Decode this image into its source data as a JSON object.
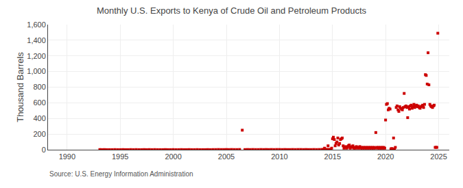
{
  "chart_data": {
    "type": "scatter",
    "title": "Monthly U.S. Exports to Kenya of Crude Oil and Petroleum Products",
    "y_label": "Thousand Barrels",
    "annotations": [
      "Source: U.S. Energy Information Administration"
    ],
    "color": "#cc0000",
    "marker": "square",
    "grid": true,
    "xlim": [
      1988.2,
      2026.0
    ],
    "xticks": [
      1990,
      1995,
      2000,
      2005,
      2010,
      2015,
      2020,
      2025
    ],
    "ylim": [
      0,
      1600
    ],
    "yticks": [
      0,
      200,
      400,
      600,
      800,
      {
        "value": 1000,
        "label": "1,000"
      },
      {
        "value": 1200,
        "label": "1,200"
      },
      {
        "value": 1400,
        "label": "1,400"
      },
      {
        "value": 1600,
        "label": "1,600"
      }
    ],
    "x": [
      1993.08,
      1993.25,
      1993.5,
      1993.75,
      1994.0,
      1994.25,
      1994.5,
      1994.75,
      1995.0,
      1995.25,
      1995.5,
      1995.75,
      1996.0,
      1996.25,
      1996.5,
      1996.75,
      1997.0,
      1997.25,
      1997.5,
      1997.75,
      1998.0,
      1998.25,
      1998.5,
      1998.75,
      1999.0,
      1999.25,
      1999.5,
      1999.75,
      2000.0,
      2000.25,
      2000.5,
      2000.75,
      2001.0,
      2001.25,
      2001.5,
      2001.75,
      2002.0,
      2002.25,
      2002.5,
      2002.75,
      2003.0,
      2003.25,
      2003.5,
      2003.75,
      2004.0,
      2004.25,
      2004.5,
      2004.75,
      2005.0,
      2005.25,
      2005.5,
      2005.75,
      2006.0,
      2006.25,
      2006.5,
      2006.75,
      2007.0,
      2007.25,
      2007.5,
      2007.75,
      2008.0,
      2008.25,
      2008.5,
      2008.75,
      2009.0,
      2009.25,
      2009.5,
      2009.75,
      2010.0,
      2010.25,
      2010.5,
      2010.75,
      2011.0,
      2011.25,
      2011.5,
      2011.75,
      2012.0,
      2012.25,
      2012.5,
      2012.75,
      2013.0,
      2013.25,
      2013.5,
      2013.75,
      2014.0,
      2014.08,
      2014.17,
      2014.25,
      2014.33,
      2014.42,
      2014.5,
      2014.58,
      2014.67,
      2014.75,
      2014.83,
      2014.92,
      2015.0,
      2015.08,
      2015.17,
      2015.25,
      2015.33,
      2015.42,
      2015.5,
      2015.58,
      2015.67,
      2015.75,
      2015.83,
      2015.92,
      2016.0,
      2016.08,
      2016.17,
      2016.25,
      2016.33,
      2016.42,
      2016.5,
      2016.58,
      2016.67,
      2016.75,
      2016.83,
      2016.92,
      2017.0,
      2017.08,
      2017.17,
      2017.25,
      2017.33,
      2017.42,
      2017.5,
      2017.58,
      2017.67,
      2017.75,
      2017.83,
      2017.92,
      2018.0,
      2018.08,
      2018.17,
      2018.25,
      2018.33,
      2018.42,
      2018.5,
      2018.58,
      2018.67,
      2018.75,
      2018.83,
      2018.92,
      2019.0,
      2019.08,
      2019.17,
      2019.25,
      2019.33,
      2019.42,
      2019.5,
      2019.58,
      2019.67,
      2019.75,
      2019.83,
      2019.92,
      2020.0,
      2020.08,
      2020.17,
      2020.25,
      2020.33,
      2020.42,
      2020.5,
      2020.58,
      2020.67,
      2020.75,
      2020.83,
      2020.92,
      2021.0,
      2021.08,
      2021.17,
      2021.25,
      2021.33,
      2021.42,
      2021.5,
      2021.58,
      2021.67,
      2021.75,
      2021.83,
      2021.92,
      2022.0,
      2022.08,
      2022.17,
      2022.25,
      2022.33,
      2022.42,
      2022.5,
      2022.58,
      2022.67,
      2022.75,
      2022.83,
      2022.92,
      2023.0,
      2023.08,
      2023.17,
      2023.25,
      2023.33,
      2023.42,
      2023.5,
      2023.58,
      2023.67,
      2023.75,
      2023.83,
      2023.92,
      2024.0,
      2024.08,
      2024.17,
      2024.25,
      2024.33,
      2024.42,
      2024.5,
      2024.58,
      2024.67,
      2024.75,
      2024.83,
      2024.92
    ],
    "values": [
      2,
      1,
      2,
      1,
      1,
      1,
      2,
      1,
      1,
      2,
      1,
      1,
      2,
      1,
      2,
      1,
      1,
      2,
      1,
      2,
      1,
      2,
      1,
      1,
      1,
      2,
      1,
      1,
      2,
      1,
      1,
      2,
      1,
      1,
      2,
      1,
      1,
      2,
      1,
      1,
      1,
      2,
      1,
      2,
      2,
      3,
      2,
      2,
      3,
      2,
      3,
      2,
      2,
      3,
      250,
      2,
      3,
      2,
      3,
      2,
      2,
      3,
      2,
      3,
      2,
      3,
      2,
      3,
      3,
      2,
      3,
      2,
      2,
      3,
      2,
      3,
      3,
      2,
      3,
      2,
      2,
      3,
      2,
      3,
      3,
      2,
      3,
      20,
      3,
      2,
      3,
      50,
      3,
      2,
      3,
      20,
      140,
      160,
      130,
      50,
      80,
      100,
      150,
      60,
      80,
      130,
      140,
      150,
      50,
      20,
      30,
      40,
      20,
      30,
      50,
      60,
      20,
      30,
      40,
      50,
      20,
      30,
      20,
      40,
      30,
      20,
      30,
      40,
      20,
      30,
      20,
      30,
      20,
      30,
      20,
      30,
      20,
      30,
      20,
      30,
      20,
      30,
      20,
      30,
      20,
      220,
      30,
      20,
      30,
      20,
      30,
      20,
      30,
      20,
      30,
      20,
      380,
      580,
      590,
      510,
      530,
      520,
      10,
      15,
      10,
      150,
      10,
      30,
      540,
      560,
      510,
      490,
      550,
      530,
      520,
      510,
      540,
      720,
      550,
      560,
      540,
      410,
      550,
      520,
      560,
      570,
      530,
      550,
      580,
      540,
      560,
      570,
      550,
      560,
      540,
      530,
      550,
      560,
      570,
      540,
      580,
      960,
      950,
      840,
      1240,
      830,
      580,
      560,
      550,
      540,
      560,
      570,
      30,
      30,
      30,
      1490
    ]
  }
}
